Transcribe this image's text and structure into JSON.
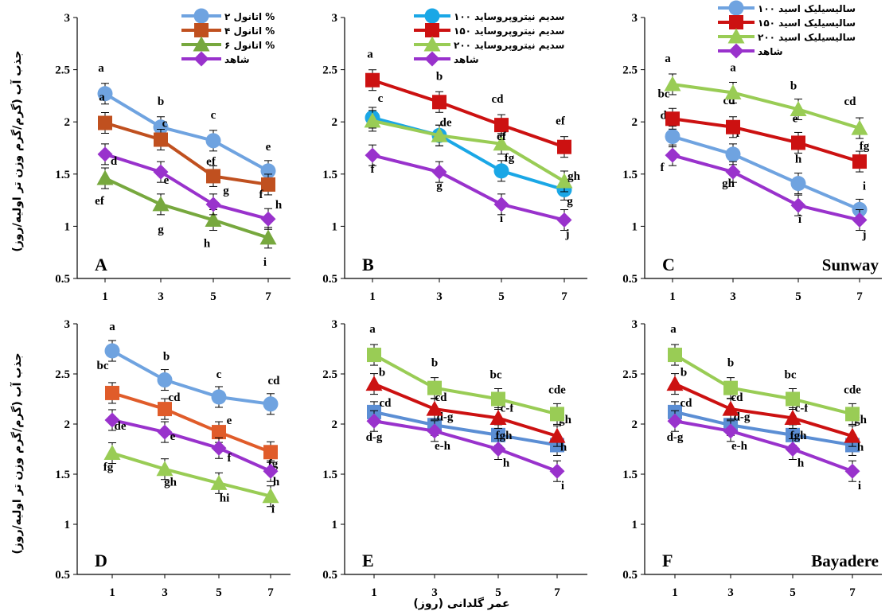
{
  "figure": {
    "ylabel": "جذب آب (گرم/گرم وزن تر اولیه/روز)",
    "xlabel": "عمر گلدانی (روز)"
  },
  "chart_data": [
    {
      "type": "line",
      "panel": "A",
      "cultivar": "",
      "x": [
        1,
        3,
        5,
        7
      ],
      "ylim": [
        0.5,
        3
      ],
      "yticks": [
        "0.5",
        "1",
        "1.5",
        "2",
        "2.5",
        "3"
      ],
      "xticks": [
        "1",
        "3",
        "5",
        "7"
      ],
      "series": [
        {
          "name": "اتانول ۲ %",
          "color": "#6fa3e0",
          "marker": "circle",
          "values": [
            2.27,
            1.95,
            1.82,
            1.53
          ],
          "labels": [
            "a",
            "b",
            "c",
            "e"
          ]
        },
        {
          "name": "اتانول ۴ %",
          "color": "#c0501f",
          "marker": "square",
          "values": [
            1.99,
            1.83,
            1.48,
            1.4
          ],
          "labels": [
            "a",
            "c",
            "ef",
            "f"
          ]
        },
        {
          "name": "اتانول ۶ %",
          "color": "#77a83e",
          "marker": "triangle",
          "values": [
            1.46,
            1.21,
            1.06,
            0.89
          ],
          "labels": [
            "ef",
            "g",
            "h",
            "i"
          ]
        },
        {
          "name": "شاهد",
          "color": "#9932cc",
          "marker": "diamond",
          "values": [
            1.69,
            1.52,
            1.21,
            1.07
          ],
          "labels": [
            "d",
            "e",
            "g",
            "h"
          ]
        }
      ]
    },
    {
      "type": "line",
      "panel": "B",
      "cultivar": "",
      "x": [
        1,
        3,
        5,
        7
      ],
      "ylim": [
        0.5,
        3
      ],
      "yticks": [
        "0.5",
        "1",
        "1.5",
        "2",
        "2.5",
        "3"
      ],
      "xticks": [
        "1",
        "3",
        "5",
        "7"
      ],
      "series": [
        {
          "name": "سدیم نیتروپروساید ۱۰۰",
          "color": "#1aa7e6",
          "marker": "circle",
          "values": [
            2.04,
            1.87,
            1.53,
            1.35
          ],
          "labels": [
            "c",
            "de",
            "fg",
            "g"
          ]
        },
        {
          "name": "سدیم نیتروپروساید ۱۵۰",
          "color": "#cc1111",
          "marker": "square",
          "values": [
            2.4,
            2.19,
            1.97,
            1.76
          ],
          "labels": [
            "a",
            "b",
            "cd",
            "ef"
          ]
        },
        {
          "name": "سدیم نیتروپروساید ۲۰۰",
          "color": "#99cc55",
          "marker": "triangle",
          "values": [
            2.01,
            1.87,
            1.79,
            1.43
          ],
          "labels": [
            "",
            "",
            "ef",
            "gh"
          ]
        },
        {
          "name": "شاهد",
          "color": "#9932cc",
          "marker": "diamond",
          "values": [
            1.68,
            1.52,
            1.21,
            1.06
          ],
          "labels": [
            "f",
            "g",
            "i",
            "j"
          ]
        }
      ]
    },
    {
      "type": "line",
      "panel": "C",
      "cultivar": "Sunway",
      "x": [
        1,
        3,
        5,
        7
      ],
      "ylim": [
        0.5,
        3
      ],
      "yticks": [
        "0.5",
        "1",
        "1.5",
        "2",
        "2.5",
        "3"
      ],
      "xticks": [
        "1",
        "3",
        "5",
        "7"
      ],
      "series": [
        {
          "name": "سالیسیلیک اسید ۱۰۰",
          "color": "#6fa3e0",
          "marker": "circle",
          "values": [
            1.86,
            1.69,
            1.41,
            1.16
          ],
          "labels": [
            "de",
            "f",
            "h",
            "i"
          ]
        },
        {
          "name": "سالیسیلیک اسید ۱۵۰",
          "color": "#cc1111",
          "marker": "square",
          "values": [
            2.03,
            1.95,
            1.8,
            1.62
          ],
          "labels": [
            "bc",
            "cd",
            "e",
            "fg"
          ]
        },
        {
          "name": "سالیسیلیک اسید ۲۰۰",
          "color": "#99cc55",
          "marker": "triangle",
          "values": [
            2.36,
            2.28,
            2.12,
            1.94
          ],
          "labels": [
            "a",
            "a",
            "b",
            "cd"
          ]
        },
        {
          "name": "شاهد",
          "color": "#9932cc",
          "marker": "diamond",
          "values": [
            1.68,
            1.52,
            1.2,
            1.06
          ],
          "labels": [
            "f",
            "gh",
            "i",
            "j"
          ]
        }
      ]
    },
    {
      "type": "line",
      "panel": "D",
      "cultivar": "",
      "x": [
        1,
        3,
        5,
        7
      ],
      "ylim": [
        0.5,
        3
      ],
      "yticks": [
        "0.5",
        "1",
        "1.5",
        "2",
        "2.5",
        "3"
      ],
      "xticks": [
        "1",
        "3",
        "5",
        "7"
      ],
      "series": [
        {
          "color": "#6fa3e0",
          "marker": "circle",
          "values": [
            2.73,
            2.44,
            2.27,
            2.2
          ],
          "labels": [
            "a",
            "b",
            "c",
            "cd"
          ]
        },
        {
          "color": "#e05c2a",
          "marker": "square",
          "values": [
            2.31,
            2.15,
            1.92,
            1.72
          ],
          "labels": [
            "bc",
            "cd",
            "e",
            "fg"
          ]
        },
        {
          "color": "#99cc55",
          "marker": "triangle",
          "values": [
            1.71,
            1.55,
            1.41,
            1.28
          ],
          "labels": [
            "fg",
            "gh",
            "hi",
            "i"
          ]
        },
        {
          "color": "#9932cc",
          "marker": "diamond",
          "values": [
            2.04,
            1.92,
            1.76,
            1.53
          ],
          "labels": [
            "de",
            "e",
            "f",
            "h"
          ]
        }
      ]
    },
    {
      "type": "line",
      "panel": "E",
      "cultivar": "",
      "x": [
        1,
        3,
        5,
        7
      ],
      "ylim": [
        0.5,
        3
      ],
      "yticks": [
        "0.5",
        "1",
        "1.5",
        "2",
        "2.5",
        "3"
      ],
      "xticks": [
        "1",
        "3",
        "5",
        "7"
      ],
      "series": [
        {
          "color": "#5b8ed4",
          "marker": "square",
          "values": [
            2.12,
            1.99,
            1.89,
            1.79
          ],
          "labels": [
            "cd",
            "d-g",
            "fgh",
            "h"
          ]
        },
        {
          "color": "#cc1111",
          "marker": "triangle",
          "values": [
            2.4,
            2.15,
            2.06,
            1.88
          ],
          "labels": [
            "b",
            "cd",
            "c-f",
            "gh"
          ]
        },
        {
          "color": "#99cc55",
          "marker": "square",
          "values": [
            2.69,
            2.36,
            2.25,
            2.1
          ],
          "labels": [
            "a",
            "b",
            "bc",
            "cde"
          ]
        },
        {
          "color": "#9932cc",
          "marker": "diamond",
          "values": [
            2.03,
            1.93,
            1.75,
            1.53
          ],
          "labels": [
            "d-g",
            "e-h",
            "h",
            "i"
          ]
        }
      ]
    },
    {
      "type": "line",
      "panel": "F",
      "cultivar": "Bayadere",
      "x": [
        1,
        3,
        5,
        7
      ],
      "ylim": [
        0.5,
        3
      ],
      "yticks": [
        "0.5",
        "1",
        "1.5",
        "2",
        "2.5",
        "3"
      ],
      "xticks": [
        "1",
        "3",
        "5",
        "7"
      ],
      "series": [
        {
          "color": "#5b8ed4",
          "marker": "square",
          "values": [
            2.12,
            1.99,
            1.89,
            1.79
          ],
          "labels": [
            "cd",
            "d-g",
            "fgh",
            "h"
          ]
        },
        {
          "color": "#cc1111",
          "marker": "triangle",
          "values": [
            2.4,
            2.15,
            2.06,
            1.88
          ],
          "labels": [
            "b",
            "cd",
            "c-f",
            "gh"
          ]
        },
        {
          "color": "#99cc55",
          "marker": "square",
          "values": [
            2.69,
            2.36,
            2.25,
            2.1
          ],
          "labels": [
            "a",
            "b",
            "bc",
            "cde"
          ]
        },
        {
          "color": "#9932cc",
          "marker": "diamond",
          "values": [
            2.03,
            1.93,
            1.75,
            1.53
          ],
          "labels": [
            "d-g",
            "e-h",
            "h",
            "i"
          ]
        }
      ]
    }
  ]
}
